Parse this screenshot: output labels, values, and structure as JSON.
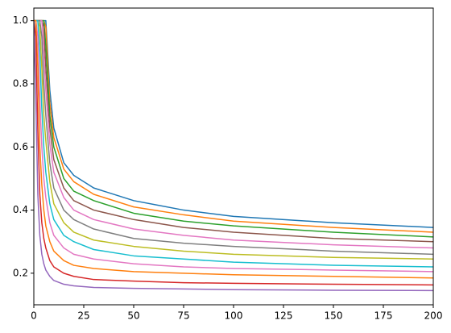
{
  "chart_data": {
    "type": "line",
    "x": [
      0,
      1,
      2,
      3,
      4,
      5,
      6,
      8,
      10,
      15,
      20,
      30,
      50,
      75,
      100,
      150,
      200
    ],
    "series": [
      {
        "color": "#1f77b4",
        "values": [
          1,
          1,
          1,
          1,
          1,
          1,
          1,
          0.78,
          0.66,
          0.55,
          0.51,
          0.47,
          0.43,
          0.4,
          0.38,
          0.36,
          0.345
        ]
      },
      {
        "color": "#ff7f0e",
        "values": [
          1,
          1,
          1,
          1,
          1,
          1,
          0.98,
          0.74,
          0.63,
          0.53,
          0.49,
          0.45,
          0.41,
          0.385,
          0.365,
          0.345,
          0.33
        ]
      },
      {
        "color": "#2ca02c",
        "values": [
          1,
          1,
          1,
          1,
          1,
          1,
          0.92,
          0.7,
          0.6,
          0.5,
          0.46,
          0.43,
          0.39,
          0.365,
          0.35,
          0.33,
          0.315
        ]
      },
      {
        "color": "#8c564b",
        "values": [
          1,
          1,
          1,
          1,
          1,
          0.98,
          0.85,
          0.66,
          0.56,
          0.47,
          0.43,
          0.4,
          0.37,
          0.345,
          0.33,
          0.31,
          0.3
        ]
      },
      {
        "color": "#e377c2",
        "values": [
          1,
          1,
          1,
          1,
          1,
          0.9,
          0.78,
          0.61,
          0.52,
          0.44,
          0.4,
          0.37,
          0.34,
          0.32,
          0.305,
          0.29,
          0.28
        ]
      },
      {
        "color": "#7f7f7f",
        "values": [
          1,
          1,
          1,
          1,
          0.95,
          0.8,
          0.7,
          0.55,
          0.47,
          0.4,
          0.37,
          0.34,
          0.31,
          0.295,
          0.285,
          0.27,
          0.26
        ]
      },
      {
        "color": "#bcbd22",
        "values": [
          1,
          1,
          1,
          0.98,
          0.85,
          0.7,
          0.62,
          0.49,
          0.42,
          0.36,
          0.33,
          0.305,
          0.285,
          0.27,
          0.26,
          0.25,
          0.245
        ]
      },
      {
        "color": "#17becf",
        "values": [
          1,
          1,
          1,
          0.9,
          0.72,
          0.6,
          0.52,
          0.42,
          0.37,
          0.32,
          0.3,
          0.275,
          0.255,
          0.245,
          0.235,
          0.225,
          0.22
        ]
      },
      {
        "color": "#e377c2",
        "values": [
          1,
          1,
          0.95,
          0.75,
          0.6,
          0.5,
          0.44,
          0.36,
          0.32,
          0.28,
          0.26,
          0.245,
          0.23,
          0.22,
          0.215,
          0.21,
          0.205
        ]
      },
      {
        "color": "#ff7f0e",
        "values": [
          1,
          1,
          0.85,
          0.6,
          0.48,
          0.4,
          0.35,
          0.3,
          0.27,
          0.24,
          0.225,
          0.215,
          0.205,
          0.2,
          0.195,
          0.19,
          0.185
        ]
      },
      {
        "color": "#d62728",
        "values": [
          1,
          0.95,
          0.65,
          0.45,
          0.36,
          0.31,
          0.28,
          0.24,
          0.22,
          0.2,
          0.19,
          0.18,
          0.175,
          0.17,
          0.168,
          0.165,
          0.163
        ]
      },
      {
        "color": "#9467bd",
        "values": [
          1,
          0.75,
          0.45,
          0.32,
          0.26,
          0.23,
          0.21,
          0.19,
          0.177,
          0.165,
          0.16,
          0.155,
          0.152,
          0.15,
          0.148,
          0.146,
          0.145
        ]
      }
    ],
    "xlim": [
      0,
      200
    ],
    "xticks": [
      0,
      25,
      50,
      75,
      100,
      125,
      150,
      175,
      200
    ],
    "ylim": [
      0.1,
      1.04
    ],
    "yticks": [
      0.2,
      0.4,
      0.6,
      0.8,
      {
        "value": 1,
        "label": "1.0"
      }
    ],
    "grid": false
  }
}
